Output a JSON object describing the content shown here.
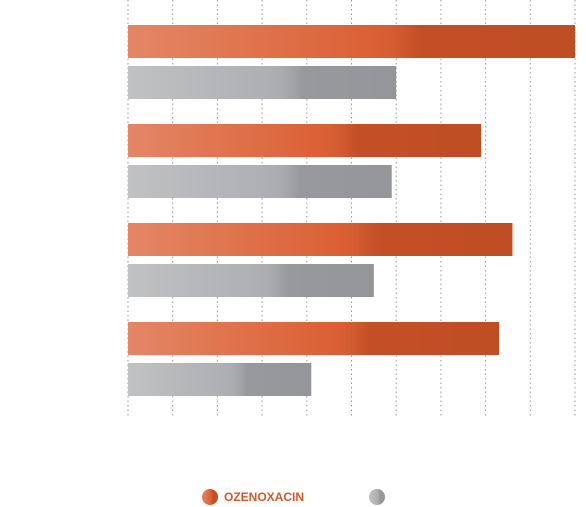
{
  "chart_data": {
    "type": "hbar",
    "categories": [
      null,
      null,
      null,
      null
    ],
    "series": [
      {
        "name": "OZENOXACIN",
        "color": "#d9582a",
        "values": [
          10,
          7.9,
          8.6,
          8.3
        ]
      },
      {
        "color": "#a9aaad",
        "values": [
          6.0,
          5.9,
          5.5,
          4.1
        ]
      }
    ],
    "xlim": [
      0,
      10
    ],
    "xticks": [
      0,
      1,
      2,
      3,
      4,
      5,
      6,
      7,
      8,
      9,
      10
    ],
    "grid": true
  }
}
